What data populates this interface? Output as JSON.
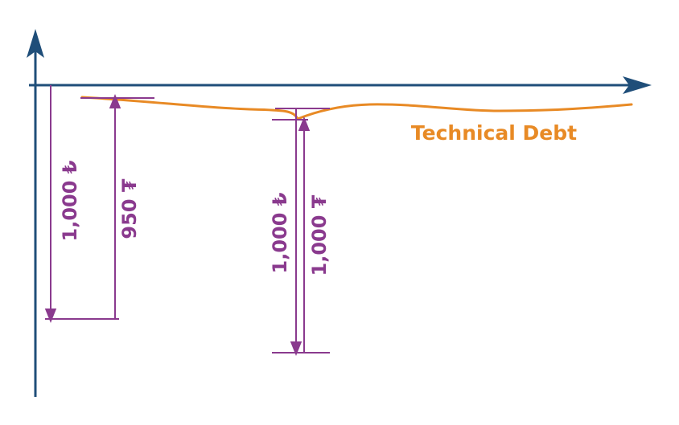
{
  "colors": {
    "axis": "#1f4e79",
    "debt_curve": "#e88a25",
    "dimension": "#8a3a8e"
  },
  "curve_label": "Technical Debt",
  "dimensions": {
    "left_outer": "1,000 ₺",
    "left_inner": "950 ₮",
    "mid_outer": "1,000 ₺",
    "mid_inner": "1,000 ₮"
  }
}
